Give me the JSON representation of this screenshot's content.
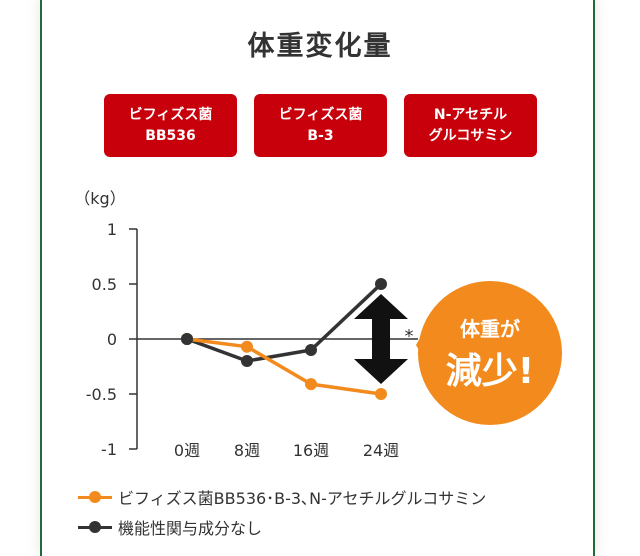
{
  "title": "体重変化量",
  "tags": [
    {
      "line1": "ビフィズス菌",
      "line2": "BB536"
    },
    {
      "line1": "ビフィズス菌",
      "line2": "B-3"
    },
    {
      "line1": "N-アセチル",
      "line2": "グルコサミン"
    }
  ],
  "chart_data": {
    "type": "line",
    "unit_label": "（kg）",
    "categories": [
      "0週",
      "8週",
      "16週",
      "24週"
    ],
    "ylim": [
      -1,
      1
    ],
    "yticks": [
      "1",
      "0.5",
      "0",
      "-0.5",
      "-1"
    ],
    "ytick_values": [
      1,
      0.5,
      0,
      -0.5,
      -1
    ],
    "series": [
      {
        "name": "ビフィズス菌BB536･B-3､N-アセチルグルコサミン",
        "color": "#f28a1e",
        "values": [
          0,
          -0.07,
          -0.41,
          -0.5
        ]
      },
      {
        "name": "機能性関与成分なし",
        "color": "#333333",
        "values": [
          0,
          -0.2,
          -0.1,
          0.5
        ]
      }
    ],
    "significance_mark": "*",
    "callout": {
      "line1": "体重が",
      "line2": "減少!",
      "color": "#f28a1e"
    }
  }
}
